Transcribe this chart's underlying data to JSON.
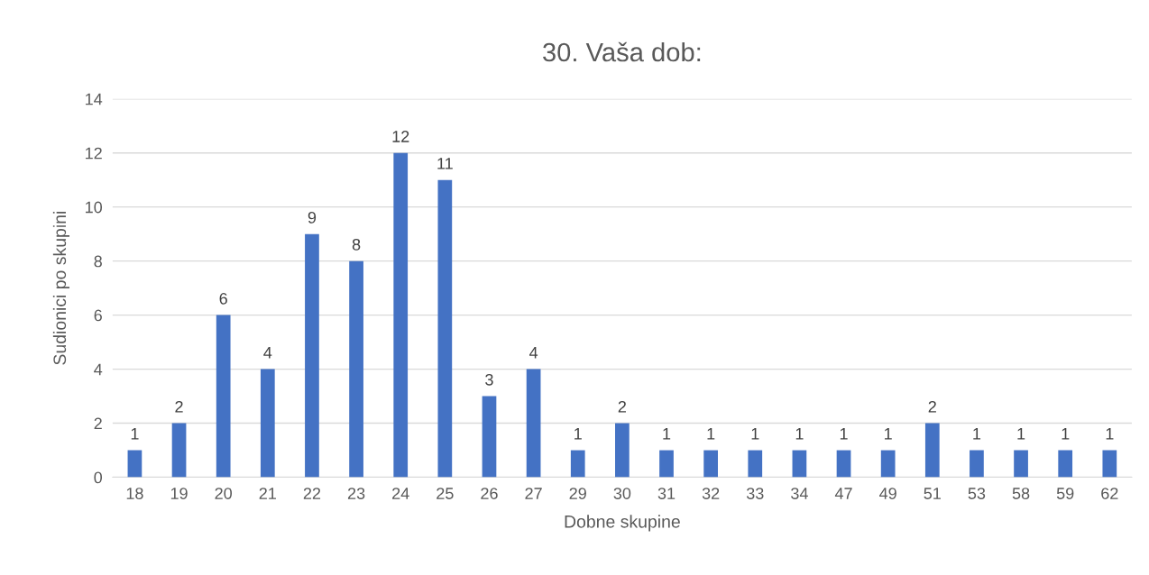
{
  "chart_data": {
    "type": "bar",
    "title": "30. Vaša dob:",
    "xlabel": "Dobne skupine",
    "ylabel": "Sudionici po skupini",
    "categories": [
      "18",
      "19",
      "20",
      "21",
      "22",
      "23",
      "24",
      "25",
      "26",
      "27",
      "29",
      "30",
      "31",
      "32",
      "33",
      "34",
      "47",
      "49",
      "51",
      "53",
      "58",
      "59",
      "62"
    ],
    "values": [
      1,
      2,
      6,
      4,
      9,
      8,
      12,
      11,
      3,
      4,
      1,
      2,
      1,
      1,
      1,
      1,
      1,
      1,
      2,
      1,
      1,
      1,
      1
    ],
    "color": "#4472c4",
    "ylim": [
      0,
      14
    ],
    "yticks": [
      0,
      2,
      4,
      6,
      8,
      10,
      12,
      14
    ],
    "grid": "y",
    "data_labels": true
  }
}
